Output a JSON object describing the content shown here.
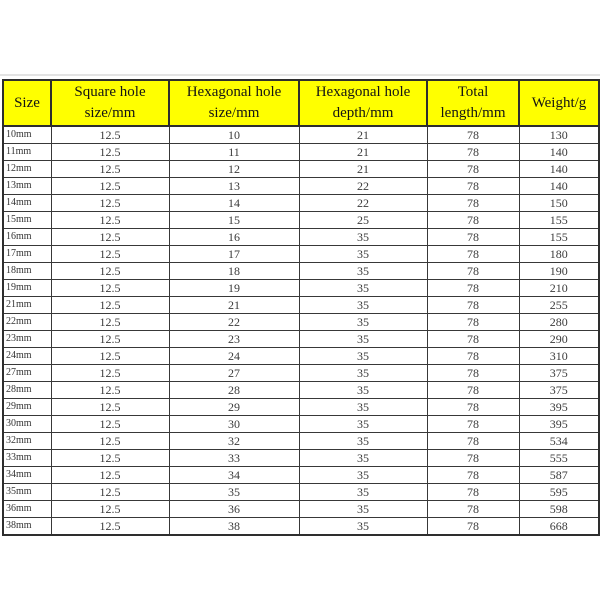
{
  "colors": {
    "header_bg": "#ffff00",
    "header_text": "#141414",
    "body_text": "#3b3b3b",
    "border": "#2e2e2e",
    "row_bg": "#ffffff",
    "top_line": "#e3e3e3"
  },
  "chart_data": {
    "type": "table",
    "title": "",
    "columns": [
      {
        "id": "size",
        "label": "Size",
        "lines": [
          "Size"
        ]
      },
      {
        "id": "square-hole-size",
        "label": "Square hole size/mm",
        "lines": [
          "Square hole",
          "size/mm"
        ]
      },
      {
        "id": "hex-hole-size",
        "label": "Hexagonal hole size/mm",
        "lines": [
          "Hexagonal hole",
          "size/mm"
        ]
      },
      {
        "id": "hex-hole-depth",
        "label": "Hexagonal hole depth/mm",
        "lines": [
          "Hexagonal hole",
          "depth/mm"
        ]
      },
      {
        "id": "total-length",
        "label": "Total length/mm",
        "lines": [
          "Total",
          "length/mm"
        ]
      },
      {
        "id": "weight",
        "label": "Weight/g",
        "lines": [
          "Weight/g"
        ]
      }
    ],
    "rows": [
      [
        "10mm",
        "12.5",
        "10",
        "21",
        "78",
        "130"
      ],
      [
        "11mm",
        "12.5",
        "11",
        "21",
        "78",
        "140"
      ],
      [
        "12mm",
        "12.5",
        "12",
        "21",
        "78",
        "140"
      ],
      [
        "13mm",
        "12.5",
        "13",
        "22",
        "78",
        "140"
      ],
      [
        "14mm",
        "12.5",
        "14",
        "22",
        "78",
        "150"
      ],
      [
        "15mm",
        "12.5",
        "15",
        "25",
        "78",
        "155"
      ],
      [
        "16mm",
        "12.5",
        "16",
        "35",
        "78",
        "155"
      ],
      [
        "17mm",
        "12.5",
        "17",
        "35",
        "78",
        "180"
      ],
      [
        "18mm",
        "12.5",
        "18",
        "35",
        "78",
        "190"
      ],
      [
        "19mm",
        "12.5",
        "19",
        "35",
        "78",
        "210"
      ],
      [
        "21mm",
        "12.5",
        "21",
        "35",
        "78",
        "255"
      ],
      [
        "22mm",
        "12.5",
        "22",
        "35",
        "78",
        "280"
      ],
      [
        "23mm",
        "12.5",
        "23",
        "35",
        "78",
        "290"
      ],
      [
        "24mm",
        "12.5",
        "24",
        "35",
        "78",
        "310"
      ],
      [
        "27mm",
        "12.5",
        "27",
        "35",
        "78",
        "375"
      ],
      [
        "28mm",
        "12.5",
        "28",
        "35",
        "78",
        "375"
      ],
      [
        "29mm",
        "12.5",
        "29",
        "35",
        "78",
        "395"
      ],
      [
        "30mm",
        "12.5",
        "30",
        "35",
        "78",
        "395"
      ],
      [
        "32mm",
        "12.5",
        "32",
        "35",
        "78",
        "534"
      ],
      [
        "33mm",
        "12.5",
        "33",
        "35",
        "78",
        "555"
      ],
      [
        "34mm",
        "12.5",
        "34",
        "35",
        "78",
        "587"
      ],
      [
        "35mm",
        "12.5",
        "35",
        "35",
        "78",
        "595"
      ],
      [
        "36mm",
        "12.5",
        "36",
        "35",
        "78",
        "598"
      ],
      [
        "38mm",
        "12.5",
        "38",
        "35",
        "78",
        "668"
      ]
    ]
  }
}
